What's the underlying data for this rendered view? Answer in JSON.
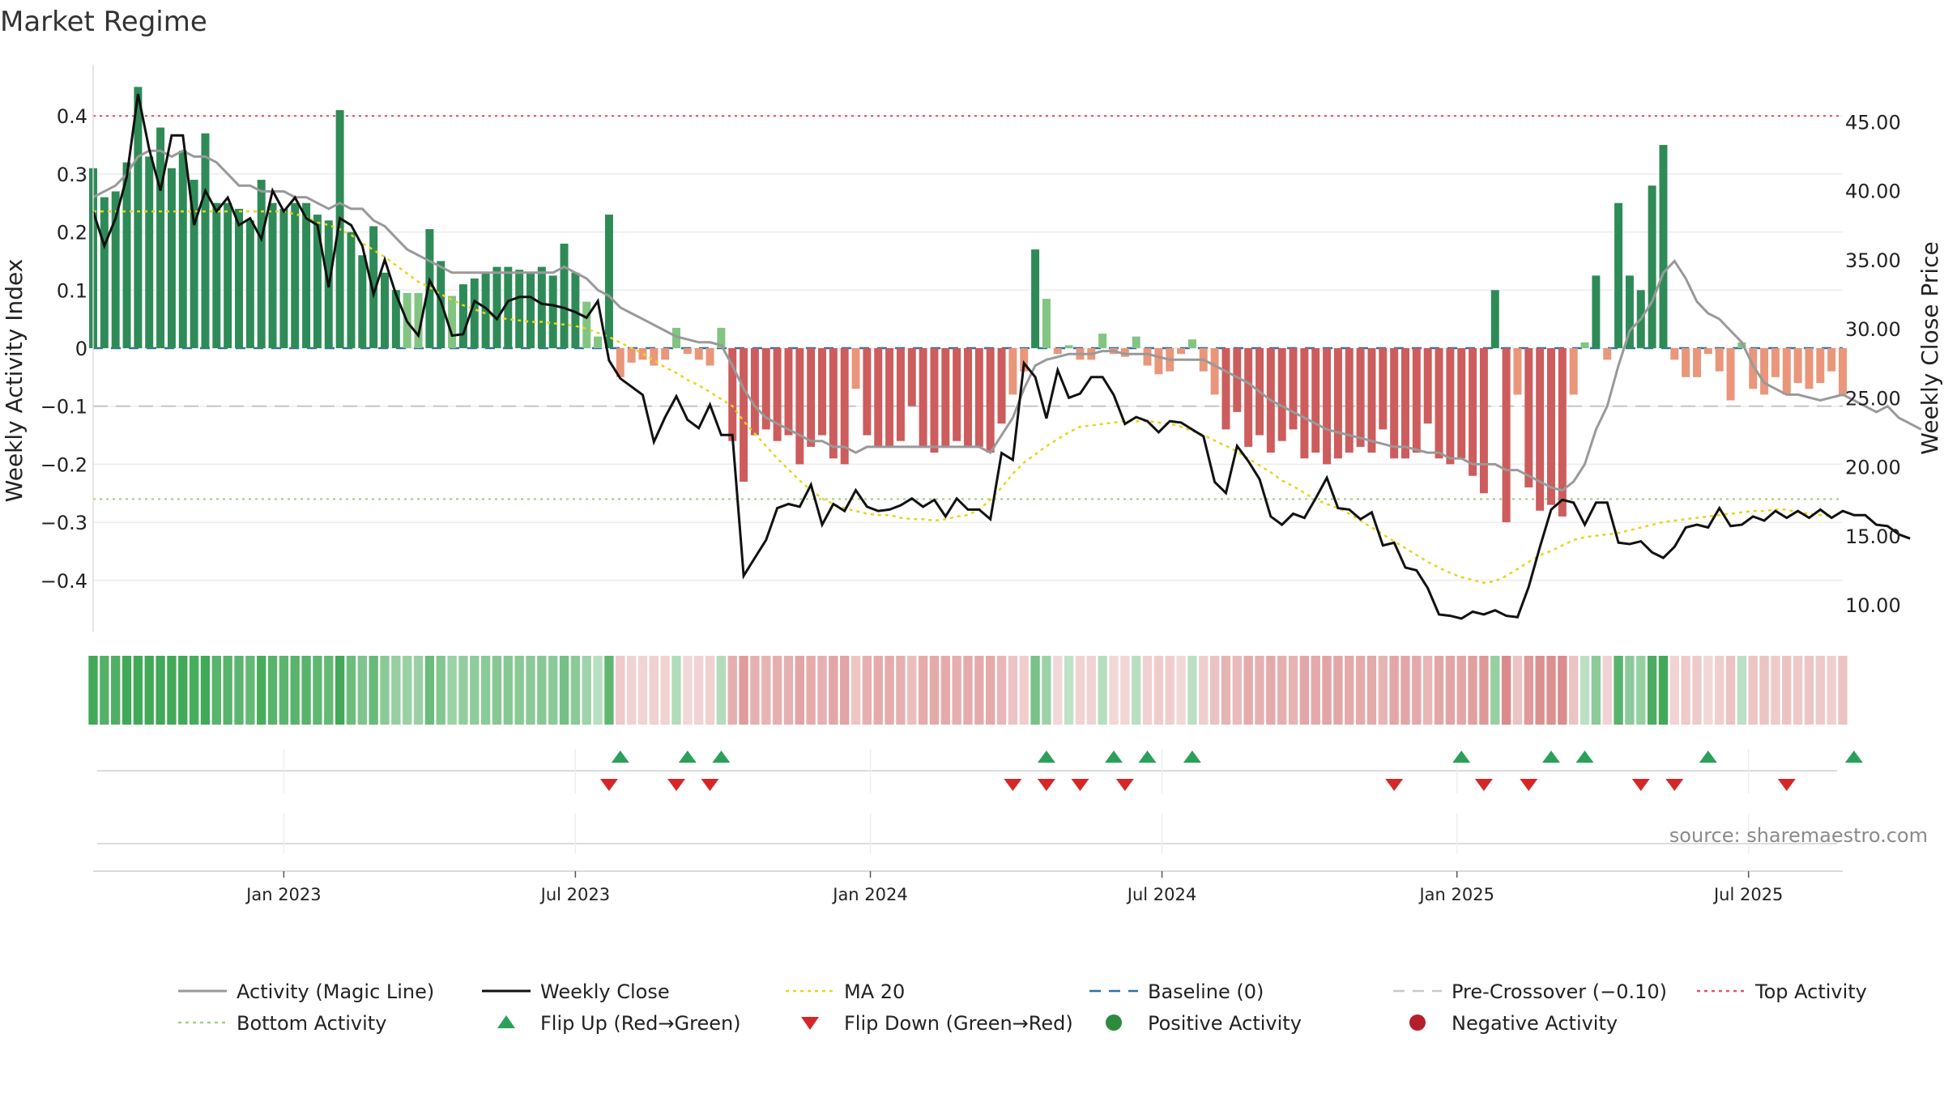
{
  "chart_data": {
    "type": "bar",
    "title": "Market Regime",
    "source": "source: sharemaestro.com",
    "ylabel_left": "Weekly Activity Index",
    "ylabel_right": "Weekly Close Price",
    "ylim_left": [
      -0.48,
      0.48
    ],
    "ylim_right": [
      8.0,
      47.4
    ],
    "yticks_left": [
      "−0.4",
      "−0.3",
      "−0.2",
      "−0.1",
      "0",
      "0.1",
      "0.2",
      "0.3",
      "0.4"
    ],
    "yticks_right": [
      "10.00",
      "15.00",
      "20.00",
      "25.00",
      "30.00",
      "35.00",
      "40.00",
      "45.00"
    ],
    "x_start": "2022-09-05",
    "x_week_index_range": [
      0,
      157
    ],
    "x_ticks": [
      {
        "label": "Jan 2023",
        "week": 17
      },
      {
        "label": "Jul 2023",
        "week": 43
      },
      {
        "label": "Jan 2024",
        "week": 69.3
      },
      {
        "label": "Jul 2024",
        "week": 95.3
      },
      {
        "label": "Jan 2025",
        "week": 121.6
      },
      {
        "label": "Jul 2025",
        "week": 147.6
      }
    ],
    "reference_lines": {
      "top_activity": 0.4,
      "bottom_activity": -0.26,
      "pre_crossover": -0.1,
      "baseline": 0
    },
    "activity_values": [
      0.31,
      0.26,
      0.27,
      0.32,
      0.45,
      0.33,
      0.38,
      0.31,
      0.34,
      0.29,
      0.37,
      0.25,
      0.25,
      0.24,
      0.22,
      0.29,
      0.25,
      0.24,
      0.25,
      0.25,
      0.23,
      0.22,
      0.41,
      0.2,
      0.16,
      0.21,
      0.13,
      0.1,
      0.095,
      0.095,
      0.205,
      0.15,
      0.09,
      0.11,
      0.12,
      0.13,
      0.14,
      0.14,
      0.135,
      0.13,
      0.14,
      0.125,
      0.18,
      0.13,
      0.08,
      0.02,
      0.23,
      -0.05,
      -0.025,
      -0.02,
      -0.03,
      -0.02,
      0.035,
      -0.01,
      -0.02,
      -0.03,
      0.035,
      -0.16,
      -0.23,
      -0.15,
      -0.14,
      -0.16,
      -0.15,
      -0.2,
      -0.17,
      -0.15,
      -0.19,
      -0.2,
      -0.07,
      -0.15,
      -0.17,
      -0.17,
      -0.16,
      -0.1,
      -0.17,
      -0.18,
      -0.17,
      -0.16,
      -0.17,
      -0.17,
      -0.18,
      -0.13,
      -0.08,
      -0.04,
      0.17,
      0.085,
      -0.01,
      0.005,
      -0.02,
      -0.02,
      0.025,
      -0.01,
      -0.015,
      0.02,
      -0.03,
      -0.045,
      -0.04,
      -0.01,
      0.015,
      -0.04,
      -0.08,
      -0.14,
      -0.11,
      -0.17,
      -0.15,
      -0.18,
      -0.16,
      -0.14,
      -0.19,
      -0.18,
      -0.2,
      -0.19,
      -0.18,
      -0.17,
      -0.18,
      -0.14,
      -0.19,
      -0.19,
      -0.18,
      -0.13,
      -0.19,
      -0.2,
      -0.19,
      -0.22,
      -0.25,
      0.1,
      -0.3,
      -0.08,
      -0.24,
      -0.28,
      -0.27,
      -0.29,
      -0.08,
      0.01,
      0.125,
      -0.02,
      0.25,
      0.125,
      0.1,
      0.28,
      0.35,
      -0.02,
      -0.05,
      -0.05,
      -0.01,
      -0.04,
      -0.09,
      0.01,
      -0.07,
      -0.08,
      -0.05,
      -0.08,
      -0.06,
      -0.07,
      -0.06,
      -0.04,
      -0.08
    ],
    "series": [
      {
        "name": "Weekly Close",
        "values": [
          38.5,
          36,
          38,
          41,
          47,
          43,
          40,
          44,
          44,
          37.5,
          40,
          38.5,
          39.5,
          37.5,
          38,
          36.5,
          40,
          38.5,
          39.5,
          38,
          37.5,
          33,
          38,
          37.5,
          36,
          32.5,
          35,
          32.5,
          30.5,
          29.5,
          33.5,
          32,
          29.5,
          29.6,
          32,
          31.5,
          30.7,
          32,
          32.3,
          32.3,
          31.8,
          31.7,
          31.5,
          31.2,
          30.8,
          32,
          27.7,
          26.4,
          25.8,
          25.2,
          21.8,
          23.6,
          25.1,
          23.4,
          22.8,
          24.5,
          22.3,
          22.3,
          12.1,
          13.4,
          14.7,
          17,
          17.3,
          17.1,
          18.7,
          15.8,
          17.3,
          16.8,
          18.3,
          17.1,
          16.8,
          16.9,
          17.2,
          17.7,
          17.1,
          17.6,
          16.4,
          17.7,
          16.9,
          16.9,
          16.2,
          21,
          20.5,
          27.5,
          26.5,
          23.5,
          27,
          25,
          25.3,
          26.5,
          26.5,
          25.2,
          23.1,
          23.6,
          23.3,
          22.5,
          23.3,
          23.2,
          22.7,
          22.2,
          18.9,
          18.1,
          21.5,
          20.4,
          19.1,
          16.4,
          15.8,
          16.6,
          16.3,
          17.7,
          19.2,
          17,
          16.9,
          16.2,
          16.7,
          14.3,
          14.5,
          12.7,
          12.5,
          11.2,
          9.3,
          9.2,
          9,
          9.5,
          9.3,
          9.6,
          9.2,
          9.1,
          11.3,
          14.2,
          16.9,
          17.6,
          17.4,
          15.8,
          17.4,
          17.4,
          14.5,
          14.4,
          14.6,
          13.8,
          13.4,
          14.2,
          15.6,
          15.8,
          15.6,
          17,
          15.7,
          15.8,
          16.4,
          16.1,
          16.8,
          16.3,
          16.8,
          16.3,
          16.9,
          16.3,
          16.8,
          16.5,
          16.5,
          15.8,
          15.7,
          15.1,
          14.8
        ]
      },
      {
        "name": "MA 20",
        "values": [
          38.5,
          38.5,
          38.5,
          38.5,
          38.5,
          38.5,
          38.5,
          38.5,
          38.5,
          38.5,
          38.5,
          38.5,
          38.5,
          38.5,
          38.5,
          38.5,
          38.5,
          38.5,
          38.3,
          38.1,
          37.7,
          37.5,
          37.2,
          36.8,
          36.2,
          35.7,
          35.2,
          34.6,
          34,
          33.4,
          33,
          32.5,
          32.1,
          31.7,
          31.4,
          31.1,
          30.8,
          30.7,
          30.6,
          30.5,
          30.5,
          30.4,
          30.3,
          30.2,
          30,
          29.7,
          29.4,
          29,
          28.6,
          28.2,
          27.7,
          27.2,
          26.8,
          26.3,
          25.9,
          25.4,
          24.9,
          24.4,
          23.3,
          22.4,
          21.5,
          20.6,
          19.8,
          19,
          18.3,
          17.7,
          17.3,
          17,
          16.8,
          16.6,
          16.5,
          16.5,
          16.3,
          16.2,
          16.2,
          16.1,
          16.2,
          16.4,
          16.5,
          16.9,
          17.6,
          18.5,
          19.5,
          20.3,
          20.9,
          21.5,
          22,
          22.5,
          22.9,
          23,
          23.1,
          23.2,
          23.3,
          23.3,
          23.3,
          23.2,
          23.1,
          22.9,
          22.6,
          22.3,
          21.9,
          21.5,
          21.1,
          20.6,
          20.1,
          19.6,
          19,
          18.6,
          18.1,
          17.6,
          17.3,
          17,
          16.6,
          16.1,
          15.6,
          15.1,
          14.6,
          14.1,
          13.6,
          13.1,
          12.7,
          12.3,
          12,
          11.8,
          11.6,
          11.7,
          12.1,
          12.6,
          13.1,
          13.6,
          13.9,
          14.3,
          14.7,
          14.9,
          15,
          15.1,
          15.2,
          15.4,
          15.6,
          15.8,
          16,
          16.1,
          16.2,
          16.3,
          16.4,
          16.5,
          16.6,
          16.7,
          16.8,
          16.8,
          16.9,
          16.9,
          16.7,
          16.6,
          16.5,
          16.4
        ]
      },
      {
        "name": "Activity (Magic Line)",
        "values": [
          0.26,
          0.27,
          0.28,
          0.3,
          0.33,
          0.34,
          0.34,
          0.33,
          0.34,
          0.33,
          0.33,
          0.32,
          0.3,
          0.28,
          0.28,
          0.27,
          0.27,
          0.27,
          0.26,
          0.26,
          0.25,
          0.24,
          0.25,
          0.24,
          0.24,
          0.22,
          0.21,
          0.19,
          0.17,
          0.16,
          0.15,
          0.14,
          0.13,
          0.13,
          0.13,
          0.13,
          0.13,
          0.13,
          0.13,
          0.13,
          0.13,
          0.13,
          0.14,
          0.13,
          0.12,
          0.1,
          0.09,
          0.07,
          0.06,
          0.05,
          0.04,
          0.03,
          0.02,
          0.015,
          0.01,
          0.01,
          0.005,
          -0.03,
          -0.07,
          -0.1,
          -0.12,
          -0.13,
          -0.14,
          -0.15,
          -0.16,
          -0.16,
          -0.17,
          -0.17,
          -0.18,
          -0.17,
          -0.17,
          -0.17,
          -0.17,
          -0.17,
          -0.17,
          -0.17,
          -0.17,
          -0.17,
          -0.17,
          -0.17,
          -0.18,
          -0.15,
          -0.12,
          -0.07,
          -0.03,
          -0.02,
          -0.015,
          -0.01,
          -0.01,
          -0.01,
          -0.005,
          -0.005,
          -0.01,
          -0.01,
          -0.01,
          -0.015,
          -0.02,
          -0.02,
          -0.02,
          -0.02,
          -0.03,
          -0.04,
          -0.05,
          -0.06,
          -0.075,
          -0.09,
          -0.1,
          -0.11,
          -0.12,
          -0.13,
          -0.14,
          -0.145,
          -0.15,
          -0.155,
          -0.16,
          -0.165,
          -0.17,
          -0.17,
          -0.175,
          -0.18,
          -0.18,
          -0.19,
          -0.19,
          -0.2,
          -0.2,
          -0.2,
          -0.21,
          -0.21,
          -0.22,
          -0.23,
          -0.24,
          -0.245,
          -0.23,
          -0.2,
          -0.14,
          -0.1,
          -0.03,
          0.03,
          0.05,
          0.08,
          0.13,
          0.15,
          0.12,
          0.08,
          0.06,
          0.05,
          0.03,
          0.01,
          -0.03,
          -0.06,
          -0.07,
          -0.08,
          -0.08,
          -0.085,
          -0.09,
          -0.085,
          -0.08,
          -0.09,
          -0.1,
          -0.11,
          -0.1,
          -0.12,
          -0.13,
          -0.14
        ]
      }
    ],
    "flip_up_weeks": [
      47,
      53,
      56,
      85,
      91,
      94,
      98,
      122,
      130,
      133,
      144,
      157
    ],
    "flip_down_weeks": [
      46,
      52,
      55,
      82,
      85,
      88,
      92,
      116,
      124,
      128,
      138,
      141,
      151
    ],
    "legend": [
      {
        "label": "Activity (Magic Line)",
        "style": "line",
        "color": "#999999"
      },
      {
        "label": "Weekly Close",
        "style": "line",
        "color": "#111111"
      },
      {
        "label": "MA 20",
        "style": "dotted",
        "color": "#e6d51c"
      },
      {
        "label": "Baseline (0)",
        "style": "dashed",
        "color": "#2f6fa6"
      },
      {
        "label": "Pre-Crossover (−0.10)",
        "style": "dashed",
        "color": "#c8c8c8"
      },
      {
        "label": "Top Activity",
        "style": "dotted",
        "color": "#e0556d"
      },
      {
        "label": "Bottom Activity",
        "style": "dotted",
        "color": "#9ed37c"
      },
      {
        "label": "Flip Up (Red→Green)",
        "style": "triangle-up",
        "color": "#2ca05a"
      },
      {
        "label": "Flip Down (Green→Red)",
        "style": "triangle-down",
        "color": "#d62728"
      },
      {
        "label": "Positive Activity",
        "style": "dot",
        "color": "#2e8b3e"
      },
      {
        "label": "Negative Activity",
        "style": "dot",
        "color": "#b3202b"
      }
    ],
    "colors": {
      "pos_strong": "#2e8b57",
      "pos_weak": "#82c482",
      "neg_strong": "#cd5c5c",
      "neg_weak": "#e9967a"
    }
  }
}
